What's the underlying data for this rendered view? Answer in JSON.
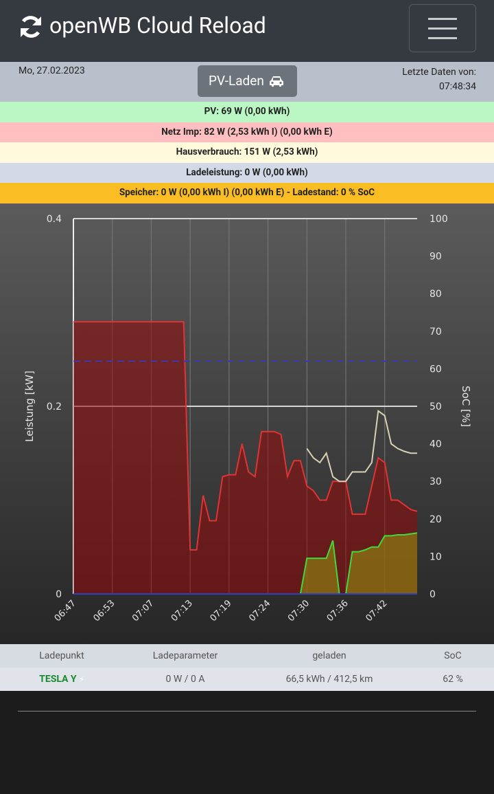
{
  "header": {
    "title": "openWB Cloud Reload",
    "date": "Mo, 27.02.2023",
    "mode_button": "PV-Laden",
    "last_data_label": "Letzte Daten von:",
    "last_data_time": "07:48:34"
  },
  "status": [
    "PV: 69 W (0,00 kWh)",
    "Netz Imp: 82 W (2,53 kWh I) (0,00 kWh E)",
    "Hausverbrauch: 151 W (2,53 kWh)",
    "Ladeleistung: 0 W (0,00 kWh)",
    "Speicher: 0 W (0,00 kWh I) (0,00 kWh E) - Ladestand: 0 % SoC"
  ],
  "chart_data": {
    "type": "line",
    "y_label": "Leistung [kW]",
    "y2_label": "SoC [%]",
    "categories": [
      "06:47",
      null,
      null,
      null,
      null,
      null,
      "06:53",
      null,
      null,
      null,
      null,
      null,
      "07:07",
      null,
      null,
      null,
      null,
      null,
      "07:13",
      null,
      null,
      null,
      null,
      null,
      "07:19",
      null,
      null,
      null,
      null,
      null,
      "07:24",
      null,
      null,
      null,
      null,
      null,
      "07:30",
      null,
      null,
      null,
      null,
      null,
      "07:36",
      null,
      null,
      null,
      null,
      null,
      "07:42",
      null,
      null,
      null,
      null,
      null
    ],
    "ylim": [
      0,
      0.4
    ],
    "yticks": [
      0,
      0.2,
      0.4
    ],
    "y2lim": [
      0,
      100
    ],
    "y2ticks": [
      0,
      10,
      20,
      30,
      40,
      50,
      60,
      70,
      80,
      90,
      100
    ],
    "grid": true,
    "series": [
      {
        "type": "area",
        "color": "#e03434",
        "values": [
          0.29,
          0.29,
          0.29,
          0.29,
          0.29,
          0.29,
          0.29,
          0.29,
          0.29,
          0.29,
          0.29,
          0.29,
          0.29,
          0.29,
          0.29,
          0.29,
          0.29,
          0.29,
          0.047,
          0.047,
          0.105,
          0.078,
          0.078,
          0.125,
          0.127,
          0.127,
          0.16,
          0.13,
          0.125,
          0.173,
          0.173,
          0.173,
          0.17,
          0.125,
          0.142,
          0.142,
          0.115,
          0.11,
          0.1,
          0.1,
          0.12,
          0.12,
          0.12,
          0.085,
          0.085,
          0.085,
          0.115,
          0.145,
          0.14,
          0.1,
          0.1,
          0.095,
          0.09,
          0.088
        ]
      },
      {
        "type": "area",
        "color": "#3ddc3d",
        "values": [
          0,
          0,
          0,
          0,
          0,
          0,
          0,
          0,
          0,
          0,
          0,
          0,
          0,
          0,
          0,
          0,
          0,
          0,
          0,
          0,
          0,
          0,
          0,
          0,
          0,
          0,
          0,
          0,
          0,
          0,
          0,
          0,
          0,
          0,
          0,
          0,
          0.038,
          0.038,
          0.038,
          0.038,
          0.057,
          0,
          0,
          0.045,
          0.045,
          0.047,
          0.05,
          0.05,
          0.062,
          0.062,
          0.063,
          0.063,
          0.064,
          0.065
        ]
      },
      {
        "type": "line",
        "color": "#d8d2b4",
        "values": [
          null,
          null,
          null,
          null,
          null,
          null,
          null,
          null,
          null,
          null,
          null,
          null,
          null,
          null,
          null,
          null,
          null,
          null,
          null,
          null,
          null,
          null,
          null,
          null,
          null,
          null,
          null,
          null,
          null,
          null,
          null,
          null,
          null,
          null,
          null,
          null,
          0.155,
          0.145,
          0.14,
          0.15,
          0.125,
          0.12,
          0.12,
          0.13,
          0.13,
          0.13,
          0.14,
          0.195,
          0.19,
          0.16,
          0.155,
          0.152,
          0.15,
          0.15
        ]
      },
      {
        "type": "line",
        "color": "#2f3fb8",
        "values": [
          0,
          0,
          0,
          0,
          0,
          0,
          0,
          0,
          0,
          0,
          0,
          0,
          0,
          0,
          0,
          0,
          0,
          0,
          0,
          0,
          0,
          0,
          0,
          0,
          0,
          0,
          0,
          0,
          0,
          0,
          0,
          0,
          0,
          0,
          0,
          0,
          0,
          0,
          0,
          0,
          0,
          0,
          0,
          0,
          0,
          0,
          0,
          0,
          0,
          0,
          0,
          0,
          0,
          0
        ]
      },
      {
        "type": "line",
        "color": "#3a3ab0",
        "dashed": true,
        "axis": "y2",
        "values": [
          62,
          62,
          62,
          62,
          62,
          62,
          62,
          62,
          62,
          62,
          62,
          62,
          62,
          62,
          62,
          62,
          62,
          62,
          62,
          62,
          62,
          62,
          62,
          62,
          62,
          62,
          62,
          62,
          62,
          62,
          62,
          62,
          62,
          62,
          62,
          62,
          62,
          62,
          62,
          62,
          62,
          62,
          62,
          62,
          62,
          62,
          62,
          62,
          62,
          62,
          62,
          62,
          62,
          62
        ]
      }
    ]
  },
  "table": {
    "headers": [
      "Ladepunkt",
      "Ladeparameter",
      "geladen",
      "SoC"
    ],
    "rows": [
      [
        "TESLA Y",
        "0 W / 0 A",
        "66,5 kWh / 412,5 km",
        "62 %"
      ]
    ]
  }
}
